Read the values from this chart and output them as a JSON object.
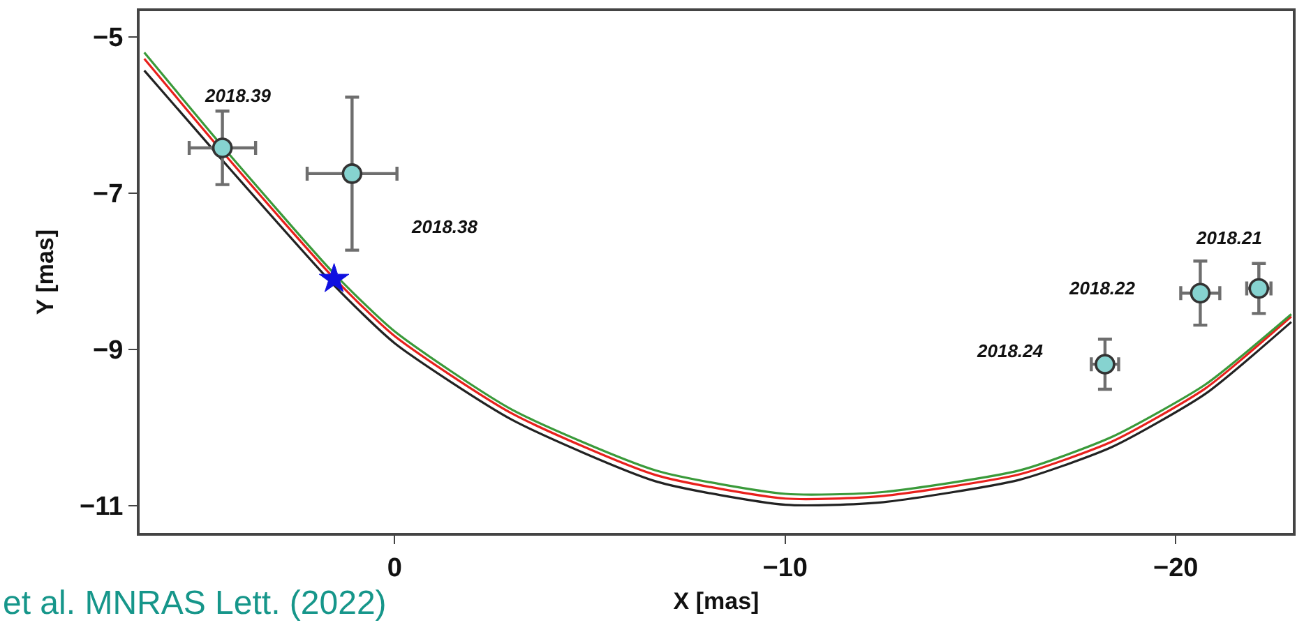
{
  "chart_data": {
    "type": "scatter",
    "xlabel": "X [mas]",
    "ylabel": "Y [mas]",
    "xlim": [
      6.53,
      -23.0
    ],
    "ylim": [
      -11.35,
      -4.67
    ],
    "xticks": [
      0,
      {
        "value": -10,
        "label": "−10"
      },
      {
        "value": -20,
        "label": "−20"
      }
    ],
    "yticks": [
      {
        "value": -5,
        "label": "−5"
      },
      {
        "value": -7,
        "label": "−7"
      },
      {
        "value": -9,
        "label": "−9"
      },
      {
        "value": -11,
        "label": "−11"
      }
    ],
    "legend": false,
    "series": [
      {
        "type": "line",
        "color": "#222222",
        "line_style": "solid",
        "marker": "none",
        "x": [
          6.41,
          4.41,
          1.55,
          0,
          -3.0,
          -6.69,
          -10.01,
          -12.43,
          -16.0,
          -18.37,
          -20.76,
          -22.96
        ],
        "values": [
          -5.43,
          -6.58,
          -8.18,
          -8.92,
          -9.9,
          -10.69,
          -10.99,
          -10.96,
          -10.67,
          -10.25,
          -9.57,
          -8.65
        ]
      },
      {
        "type": "line",
        "color": "#e8201c",
        "line_style": "solid",
        "marker": "none",
        "x": [
          6.41,
          4.41,
          1.55,
          0,
          -3.0,
          -6.69,
          -10.01,
          -12.43,
          -16.0,
          -18.37,
          -20.76,
          -22.96
        ],
        "values": [
          -5.28,
          -6.47,
          -8.09,
          -8.83,
          -9.82,
          -10.61,
          -10.91,
          -10.88,
          -10.6,
          -10.18,
          -9.5,
          -8.58
        ]
      },
      {
        "type": "line",
        "color": "#3a9a3a",
        "line_style": "solid",
        "marker": "none",
        "x": [
          6.41,
          4.41,
          1.55,
          0,
          -3.0,
          -6.69,
          -10.01,
          -12.43,
          -16.0,
          -18.37,
          -20.76,
          -22.96
        ],
        "values": [
          -5.2,
          -6.4,
          -8.03,
          -8.77,
          -9.77,
          -10.55,
          -10.85,
          -10.83,
          -10.55,
          -10.12,
          -9.45,
          -8.55
        ]
      },
      {
        "color": "#86d3d0",
        "marker": "circle",
        "x": [
          4.41,
          1.09,
          -18.19,
          -20.63,
          -22.13
        ],
        "values": [
          -6.42,
          -6.75,
          -9.19,
          -8.28,
          -8.22
        ],
        "errors": [
          0.47,
          0.98,
          0.32,
          0.41,
          0.32
        ],
        "xerrors": [
          0.85,
          1.15,
          0.35,
          0.5,
          0.31
        ]
      },
      {
        "color": "#1010e0",
        "marker": "star",
        "x": [
          1.55
        ],
        "values": [
          -8.1
        ]
      }
    ],
    "annotations": [
      {
        "text": "2018.39",
        "x": 4.41,
        "y": -6.42
      },
      {
        "text": "2018.21",
        "x": -22.13,
        "y": -8.22
      },
      "2018.38",
      "2018.24",
      "2018.22",
      "et al. MNRAS Lett. (2022)"
    ]
  }
}
